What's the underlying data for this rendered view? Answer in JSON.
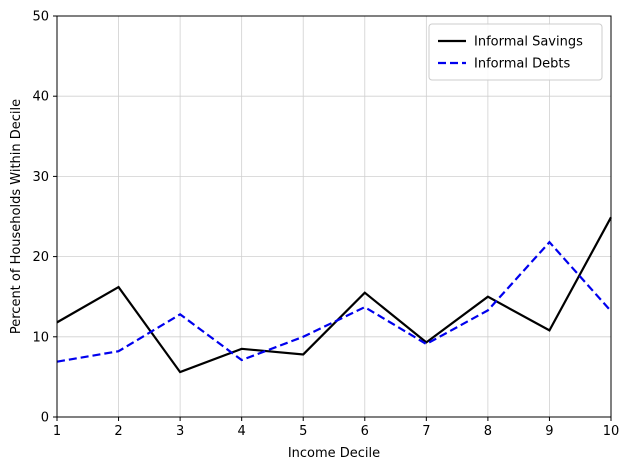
{
  "chart_data": {
    "type": "line",
    "xlabel": "Income Decile",
    "ylabel": "Percent of Households Within Decile",
    "xlim": [
      1,
      10
    ],
    "ylim": [
      0,
      50
    ],
    "x_ticks": [
      1,
      2,
      3,
      4,
      5,
      6,
      7,
      8,
      9,
      10
    ],
    "y_ticks": [
      0,
      10,
      20,
      30,
      40,
      50
    ],
    "grid": true,
    "legend_position": "top-right",
    "x": [
      1,
      2,
      3,
      4,
      5,
      6,
      7,
      8,
      9,
      10
    ],
    "series": [
      {
        "name": "Informal Savings",
        "color": "#000000",
        "style": "solid",
        "values": [
          11.8,
          16.2,
          5.6,
          8.5,
          7.8,
          15.5,
          9.3,
          15.0,
          10.8,
          24.9
        ]
      },
      {
        "name": "Informal Debts",
        "color": "#0000ee",
        "style": "dashed",
        "values": [
          6.9,
          8.2,
          12.8,
          7.1,
          10.0,
          13.7,
          9.1,
          13.3,
          21.8,
          13.2
        ]
      }
    ]
  }
}
